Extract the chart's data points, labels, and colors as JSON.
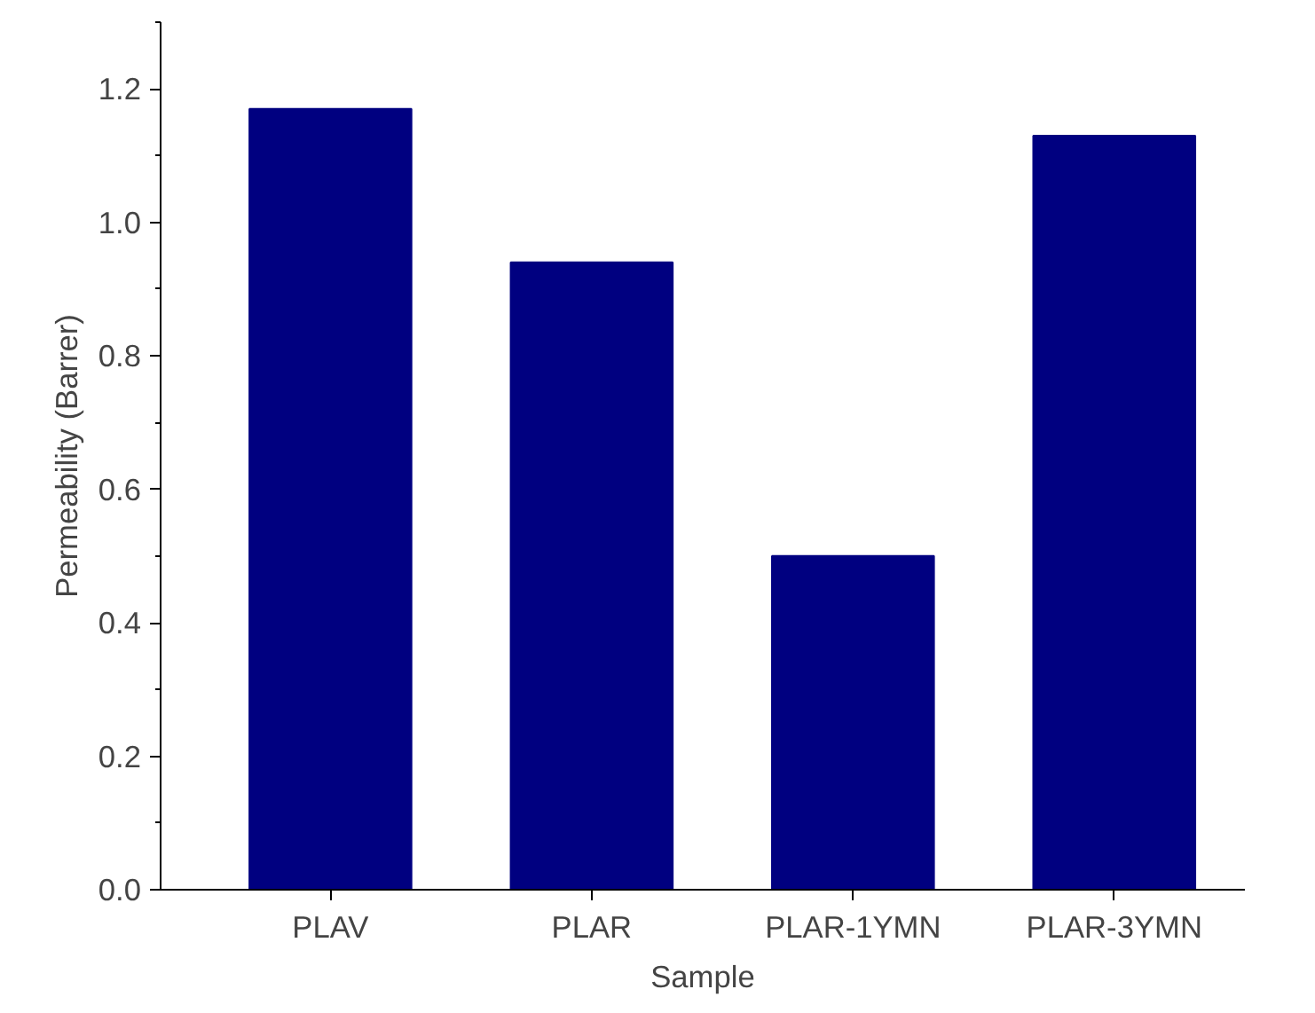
{
  "chart_data": {
    "type": "bar",
    "xlabel": "Sample",
    "ylabel": "Permeability (Barrer)",
    "categories": [
      "PLAV",
      "PLAR",
      "PLAR-1YMN",
      "PLAR-3YMN"
    ],
    "values": [
      1.17,
      0.94,
      0.5,
      1.13
    ],
    "color": "#000080",
    "ylim": [
      0,
      1.3
    ],
    "yticks": [
      {
        "value": 0,
        "label": "0.0"
      },
      0.2,
      0.4,
      0.6,
      0.8,
      {
        "value": 1,
        "label": "1.0"
      },
      1.2
    ],
    "grid": false
  }
}
